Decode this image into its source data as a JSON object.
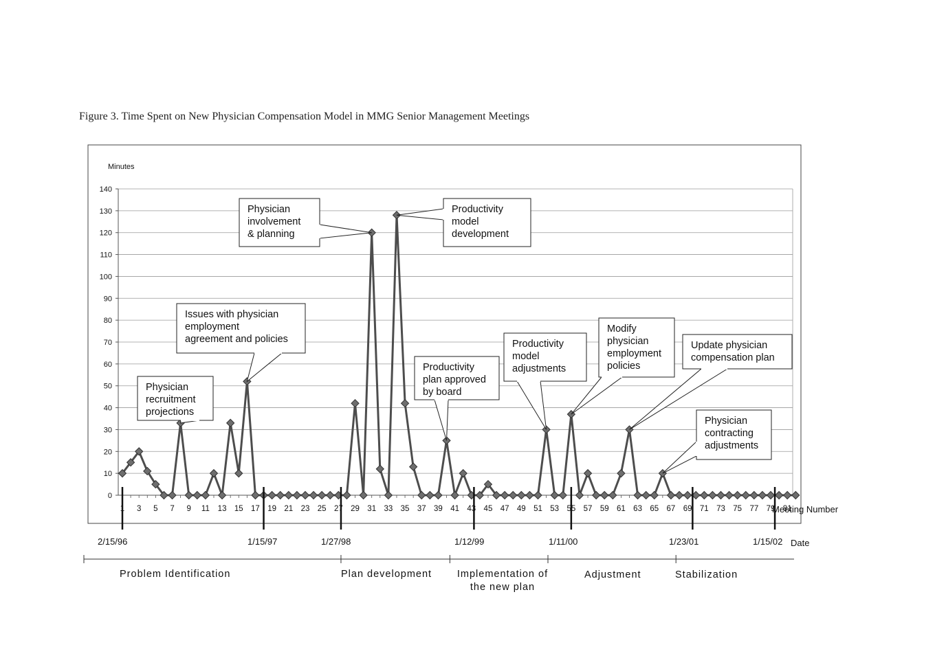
{
  "caption": "Figure 3. Time Spent on New Physician Compensation Model in MMG Senior Management Meetings",
  "chart_data": {
    "type": "line",
    "ylabel": "Minutes",
    "xlabel": "Meeting Number",
    "ylim": [
      0,
      140
    ],
    "yticks": [
      0,
      10,
      20,
      30,
      40,
      50,
      60,
      70,
      80,
      90,
      100,
      110,
      120,
      130,
      140
    ],
    "xlim": [
      1,
      82
    ],
    "xtick_labels": [
      "1",
      "3",
      "5",
      "7",
      "9",
      "11",
      "13",
      "15",
      "17",
      "19",
      "21",
      "23",
      "25",
      "27",
      "29",
      "31",
      "33",
      "35",
      "37",
      "39",
      "41",
      "43",
      "45",
      "47",
      "49",
      "51",
      "53",
      "55",
      "57",
      "59",
      "61",
      "63",
      "65",
      "67",
      "69",
      "71",
      "73",
      "75",
      "77",
      "79",
      "81"
    ],
    "grid": true,
    "marker": "diamond",
    "line_color": "#4d4d4d",
    "marker_color": "#6e6e6e",
    "series": [
      {
        "x": [
          1,
          2,
          3,
          4,
          5,
          6,
          7,
          8,
          9,
          10,
          11,
          12,
          13,
          14,
          15,
          16,
          17,
          18,
          19,
          20,
          21,
          22,
          23,
          24,
          25,
          26,
          27,
          28,
          29,
          30,
          31,
          32,
          33,
          34,
          35,
          36,
          37,
          38,
          39,
          40,
          41,
          42,
          43,
          44,
          45,
          46,
          47,
          48,
          49,
          50,
          51,
          52,
          53,
          54,
          55,
          56,
          57,
          58,
          59,
          60,
          61,
          62,
          63,
          64,
          65,
          66,
          67,
          68,
          69,
          70,
          71,
          72,
          73,
          74,
          75,
          76,
          77,
          78,
          79,
          80,
          81,
          82
        ],
        "values": [
          10,
          15,
          20,
          11,
          5,
          0,
          0,
          33,
          0,
          0,
          0,
          10,
          0,
          33,
          10,
          52,
          0,
          0,
          0,
          0,
          0,
          0,
          0,
          0,
          0,
          0,
          0,
          0,
          42,
          0,
          120,
          12,
          0,
          128,
          42,
          13,
          0,
          0,
          0,
          25,
          0,
          10,
          0,
          0,
          5,
          0,
          0,
          0,
          0,
          0,
          0,
          30,
          0,
          0,
          37,
          0,
          10,
          0,
          0,
          0,
          10,
          30,
          0,
          0,
          0,
          10,
          0,
          0,
          0,
          0,
          0,
          0,
          0,
          0,
          0,
          0,
          0,
          0,
          0,
          0,
          0,
          0
        ]
      }
    ],
    "dates": [
      {
        "label": "2/15/96",
        "meeting": 1
      },
      {
        "label": "1/15/97",
        "meeting": 18
      },
      {
        "label": "1/27/98",
        "meeting": 27.3
      },
      {
        "label": "1/12/99",
        "meeting": 43.3
      },
      {
        "label": "1/11/00",
        "meeting": 55
      },
      {
        "label": "1/23/01",
        "meeting": 69.6
      },
      {
        "label": "1/15/02",
        "meeting": 79.5
      }
    ],
    "date_axis_label": "Date",
    "phases": [
      {
        "label": "Problem Identification",
        "start": 0.6,
        "end": 27.3
      },
      {
        "label": "Plan development",
        "start": 27.3,
        "end": 40.4
      },
      {
        "label": "Implementation of the new plan",
        "start": 40.4,
        "end": 52.2
      },
      {
        "label": "Adjustment",
        "start": 52.2,
        "end": 67.6
      },
      {
        "label": "Stabilization",
        "start": 67.6,
        "end": 82.7
      }
    ],
    "annotations": [
      {
        "text": "Physician recruitment projections",
        "meeting": 8,
        "value": 33
      },
      {
        "text": "Issues with physician employment agreement and policies",
        "meeting": 16,
        "value": 52
      },
      {
        "text": "Physician involvement & planning",
        "meeting": 31,
        "value": 120
      },
      {
        "text": "Productivity model development",
        "meeting": 34,
        "value": 128
      },
      {
        "text": "Productivity plan approved by board",
        "meeting": 40,
        "value": 25
      },
      {
        "text": "Productivity model adjustments",
        "meeting": 52,
        "value": 30
      },
      {
        "text": "Modify physician employment policies",
        "meeting": 55,
        "value": 37
      },
      {
        "text": "Update physician compensation plan",
        "meeting": 62,
        "value": 30
      },
      {
        "text": "Physician contracting adjustments",
        "meeting": 66,
        "value": 10
      }
    ]
  }
}
